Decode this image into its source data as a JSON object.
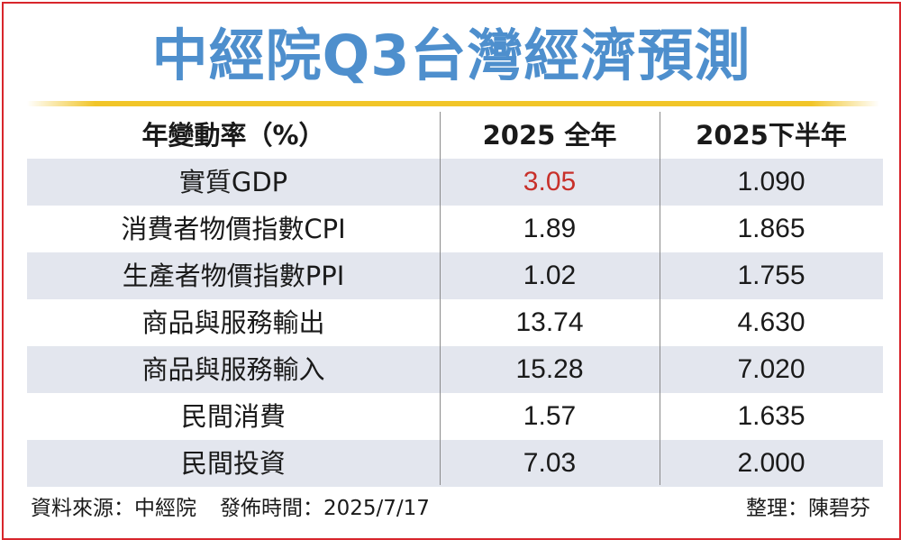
{
  "title": "中經院Q3台灣經濟預測",
  "table": {
    "headers": [
      "年變動率（%）",
      "2025 全年",
      "2025下半年"
    ],
    "rows": [
      {
        "label": "實質GDP",
        "full_year": "3.05",
        "second_half": "1.090"
      },
      {
        "label": "消費者物價指數CPI",
        "full_year": "1.89",
        "second_half": "1.865"
      },
      {
        "label": "生產者物價指數PPI",
        "full_year": "1.02",
        "second_half": "1.755"
      },
      {
        "label": "商品與服務輸出",
        "full_year": "13.74",
        "second_half": "4.630"
      },
      {
        "label": "商品與服務輸入",
        "full_year": "15.28",
        "second_half": "7.020"
      },
      {
        "label": "民間消費",
        "full_year": "1.57",
        "second_half": "1.635"
      },
      {
        "label": "民間投資",
        "full_year": "7.03",
        "second_half": "2.000"
      }
    ]
  },
  "footer": {
    "source": "資料來源：中經院",
    "published": "發佈時間：2025/7/17",
    "compiled_by": "整理：陳碧芬"
  },
  "colors": {
    "title": "#4e8fcd",
    "frame": "#d8262c",
    "rule": "#f1c528",
    "row_shade": "#e3e6ee",
    "highlight": "#c8302a"
  }
}
